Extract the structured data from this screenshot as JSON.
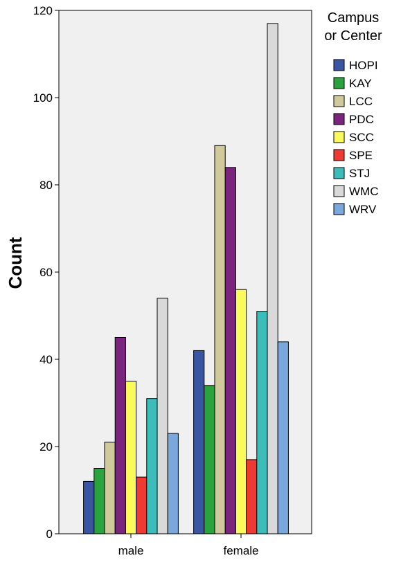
{
  "chart_data": {
    "type": "bar",
    "categories": [
      "male",
      "female"
    ],
    "series": [
      {
        "name": "HOPI",
        "values": [
          12,
          42
        ],
        "color": "#3a56a3"
      },
      {
        "name": "KAY",
        "values": [
          15,
          34
        ],
        "color": "#2aa33e"
      },
      {
        "name": "LCC",
        "values": [
          21,
          89
        ],
        "color": "#cfc99b"
      },
      {
        "name": "PDC",
        "values": [
          45,
          84
        ],
        "color": "#7b247d"
      },
      {
        "name": "SCC",
        "values": [
          35,
          56
        ],
        "color": "#fafa5a"
      },
      {
        "name": "SPE",
        "values": [
          13,
          17
        ],
        "color": "#ee3a33"
      },
      {
        "name": "STJ",
        "values": [
          31,
          51
        ],
        "color": "#3cbdba"
      },
      {
        "name": "WMC",
        "values": [
          54,
          117
        ],
        "color": "#d9d9d9"
      },
      {
        "name": "WRV",
        "values": [
          23,
          44
        ],
        "color": "#7aa8dc"
      }
    ],
    "ylabel": "Count",
    "xlabel": "",
    "ylim": [
      0,
      120
    ],
    "yticks": [
      0,
      20,
      40,
      60,
      80,
      100,
      120
    ],
    "legend_title": [
      "Campus",
      "or Center"
    ],
    "legend_position": "top-right",
    "plot_background": "#f0f0f0",
    "grid": false
  }
}
